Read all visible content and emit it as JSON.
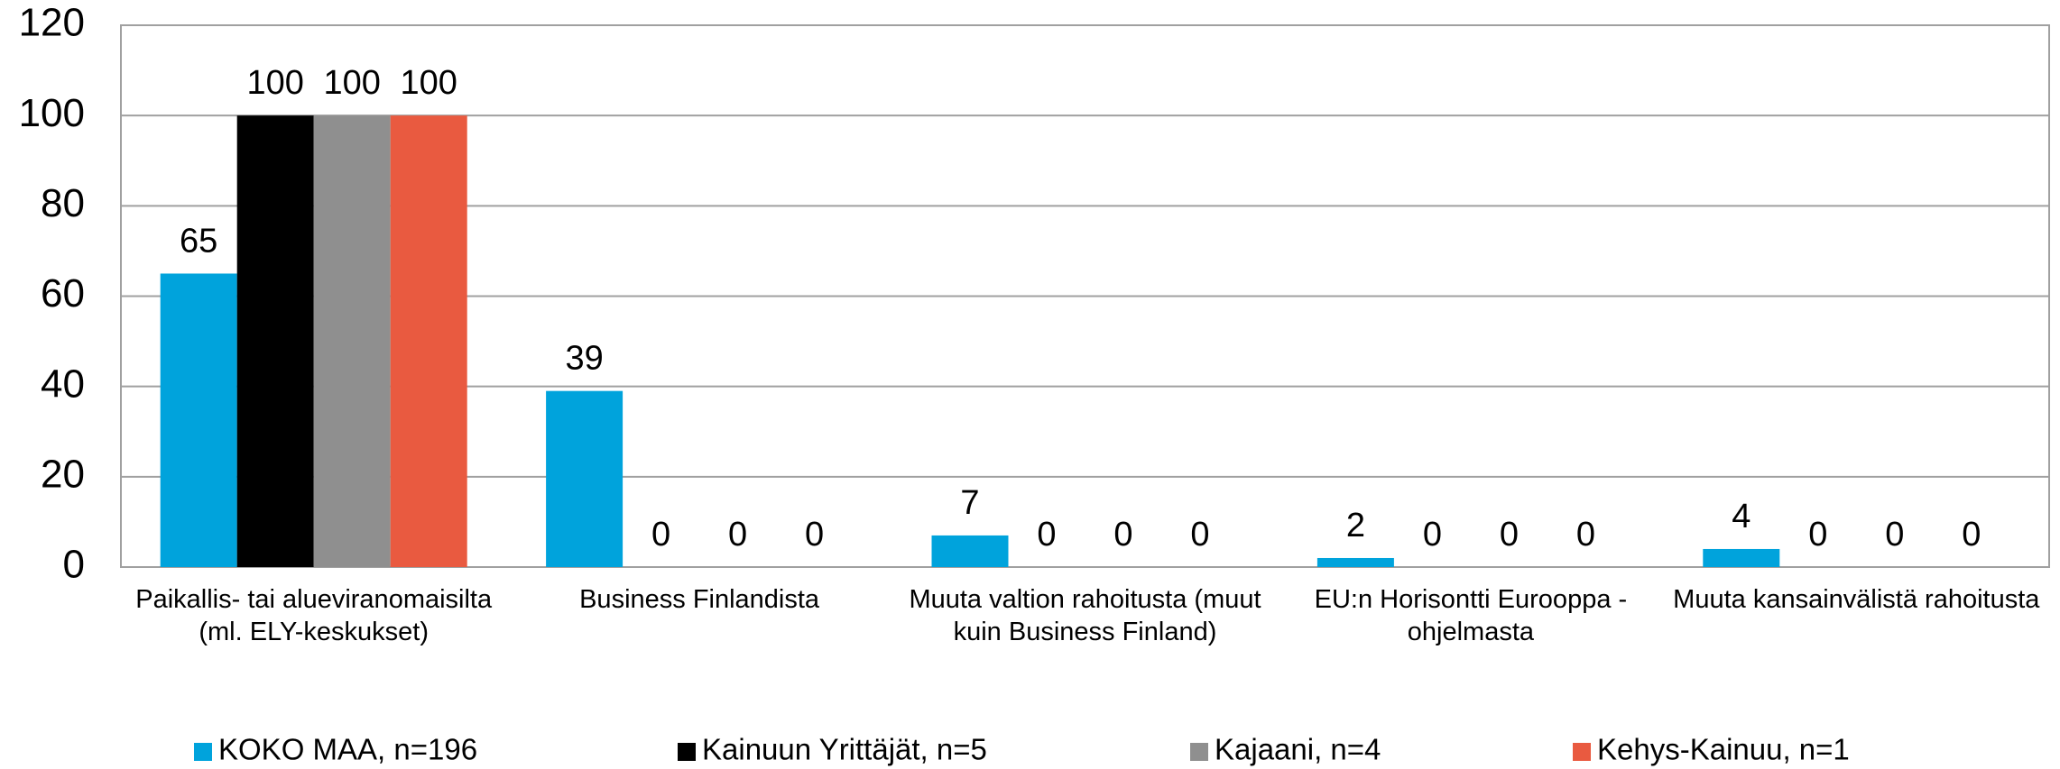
{
  "chart_data": {
    "type": "bar",
    "categories": [
      "Paikallis- tai alueviranomaisilta (ml. ELY-keskukset)",
      "Business Finlandista",
      "Muuta valtion rahoitusta (muut kuin Business Finland)",
      "EU:n Horisontti Eurooppa -ohjelmasta",
      "Muuta kansainvälistä rahoitusta"
    ],
    "series": [
      {
        "name": "KOKO MAA, n=196",
        "color": "#00a3dc",
        "values": [
          65,
          39,
          7,
          2,
          4
        ]
      },
      {
        "name": "Kainuun Yrittäjät, n=5",
        "color": "#000000",
        "values": [
          100,
          0,
          0,
          0,
          0
        ]
      },
      {
        "name": "Kajaani, n=4",
        "color": "#8f8f8f",
        "values": [
          100,
          0,
          0,
          0,
          0
        ]
      },
      {
        "name": "Kehys-Kainuu, n=1",
        "color": "#e95a40",
        "values": [
          100,
          0,
          0,
          0,
          0
        ]
      }
    ],
    "ylim": [
      0,
      120
    ],
    "yticks": [
      0,
      20,
      40,
      60,
      80,
      100,
      120
    ],
    "grid": true,
    "legend": "bottom"
  }
}
